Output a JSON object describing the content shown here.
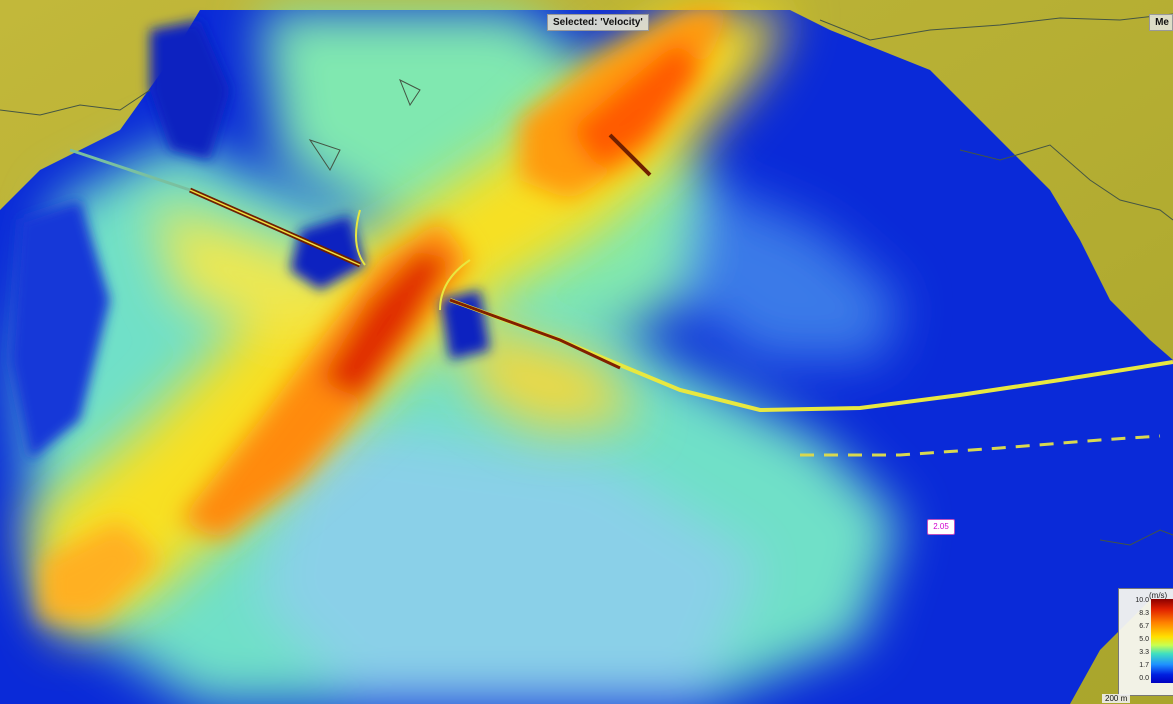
{
  "header": {
    "selected_label": "Selected: 'Velocity'",
    "right_label": "Me"
  },
  "probe": {
    "value": "2.05"
  },
  "legend": {
    "unit": "(m/s)",
    "ticks": [
      "10.0",
      "8.3",
      "6.7",
      "5.0",
      "3.3",
      "1.7",
      "0.0"
    ],
    "colors": [
      "#8b0000",
      "#e02000",
      "#ff8000",
      "#ffe000",
      "#c8ff50",
      "#40e0c0",
      "#1e90ff",
      "#0020e0",
      "#0000c0"
    ]
  },
  "scale_bar": {
    "label": "200 m"
  },
  "map_colors": {
    "land": "#b8b030",
    "shore_line": "#445544",
    "slow_water": "#0a2ad8",
    "medium_water": "#7fe0c0",
    "fast_water": "#f0c020",
    "fastest_water": "#d03000"
  }
}
